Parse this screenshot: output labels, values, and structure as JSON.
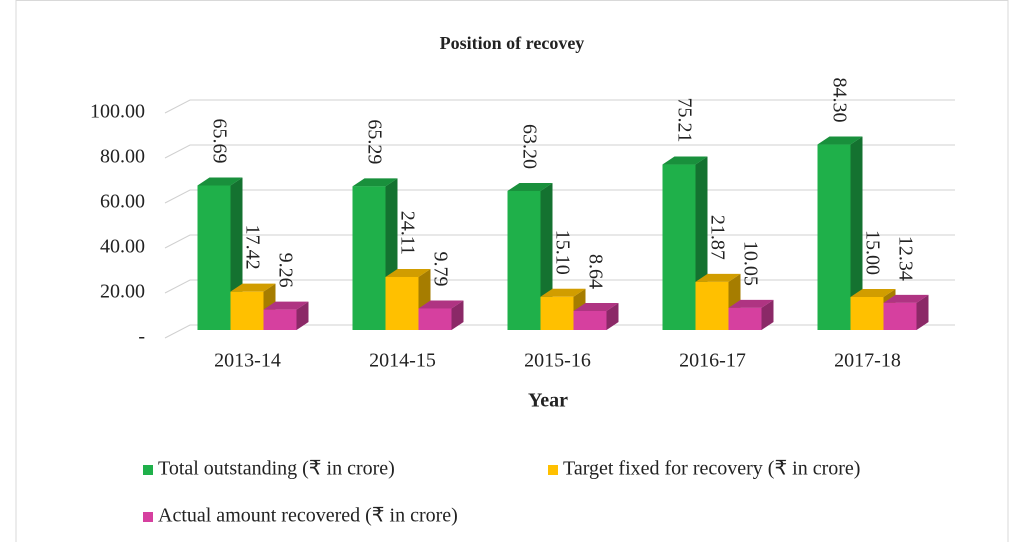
{
  "chart_data": {
    "type": "bar3d",
    "title": "Position of recovey",
    "x_label": "Year",
    "categories": [
      "2013-14",
      "2014-15",
      "2015-16",
      "2016-17",
      "2017-18"
    ],
    "series": [
      {
        "name": "Total outstanding (₹ in crore)",
        "color": "#1fb04a",
        "values": [
          65.69,
          65.29,
          63.2,
          75.21,
          84.3
        ],
        "value_labels": [
          "65.69",
          "65.29",
          "63.20",
          "75.21",
          "84.30"
        ]
      },
      {
        "name": "Target fixed for recovery (₹  in crore)",
        "color": "#ffc000",
        "values": [
          17.42,
          24.11,
          15.1,
          21.87,
          15.0
        ],
        "value_labels": [
          "17.42",
          "24.11",
          "15.10",
          "21.87",
          "15.00"
        ]
      },
      {
        "name": "Actual amount recovered (₹ in crore)",
        "color": "#d6409f",
        "values": [
          9.26,
          9.79,
          8.64,
          10.05,
          12.34
        ],
        "value_labels": [
          "9.26",
          "9.79",
          "8.64",
          "10.05",
          "12.34"
        ]
      }
    ],
    "ylim": [
      0,
      100
    ],
    "yticks": [
      {
        "value": 0,
        "label": "-"
      },
      {
        "value": 20,
        "label": "20.00"
      },
      {
        "value": 40,
        "label": "40.00"
      },
      {
        "value": 60,
        "label": "60.00"
      },
      {
        "value": 80,
        "label": "80.00"
      },
      {
        "value": 100,
        "label": "100.00"
      }
    ],
    "grid": true,
    "legend": "bottom"
  }
}
